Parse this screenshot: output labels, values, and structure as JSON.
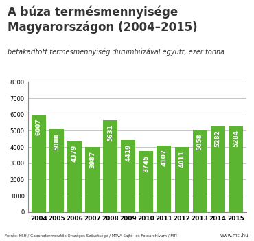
{
  "chart_data": {
    "type": "bar",
    "title": "A búza termésmennyisége Magyarországon (2004–2015)",
    "subtitle": "betakarított termésmennyiség durumbúzával együtt, ezer tonna",
    "source": "Forrás: KSH / Gabonatermesztők Országos Szövetsége / MTVA Sajtó- és Fotóarchívum / MTI",
    "credit": "www.mti.hu",
    "categories": [
      "2004",
      "2005",
      "2006",
      "2007",
      "2008",
      "2009",
      "2010",
      "2011",
      "2012",
      "2013",
      "2014",
      "2015"
    ],
    "values": [
      6007,
      5088,
      4379,
      3987,
      5631,
      4419,
      3745,
      4107,
      4011,
      5058,
      5282,
      5284
    ],
    "color": "#5bb531",
    "ylim": [
      0,
      8000
    ],
    "yticks": [
      0,
      1000,
      2000,
      3000,
      4000,
      5000,
      6000,
      7000,
      8000
    ],
    "grid": true,
    "data_labels": true
  }
}
